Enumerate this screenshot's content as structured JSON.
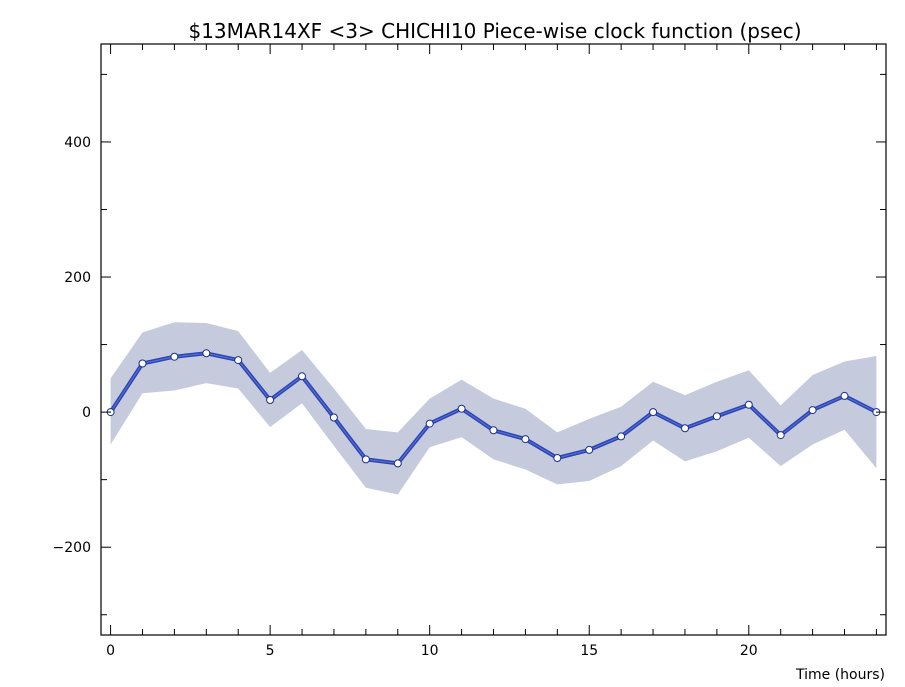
{
  "chart_data": {
    "type": "line",
    "title": "$13MAR14XF <3>  CHICHI10  Piece-wise clock function (psec)",
    "xlabel": "Time (hours)",
    "ylabel": "",
    "xlim": [
      -0.3,
      24.3
    ],
    "ylim": [
      -330,
      545
    ],
    "x_ticks": [
      "0",
      "5",
      "10",
      "15",
      "20"
    ],
    "y_ticks": [
      "-200",
      "0",
      "200",
      "400"
    ],
    "grid": false,
    "colors": {
      "line": "#2b45b8",
      "band": "#c5cadc",
      "point_fill": "#ffffff"
    },
    "series": [
      {
        "x": [
          0,
          1,
          2,
          3,
          4,
          5,
          6,
          7,
          8,
          9,
          10,
          11,
          12,
          13,
          14,
          15,
          16,
          17,
          18,
          19,
          20,
          21,
          22,
          23,
          24
        ],
        "values": [
          0,
          72,
          82,
          87,
          77,
          18,
          53,
          -8,
          -70,
          -76,
          -17,
          5,
          -27,
          -40,
          -68,
          -56,
          -36,
          0,
          -24,
          -6,
          11,
          -34,
          3,
          24,
          0
        ],
        "upper": [
          50,
          118,
          133,
          132,
          120,
          58,
          92,
          35,
          -25,
          -30,
          20,
          48,
          20,
          5,
          -30,
          -10,
          8,
          45,
          25,
          45,
          62,
          10,
          55,
          75,
          83
        ],
        "lower": [
          -48,
          28,
          32,
          43,
          35,
          -22,
          13,
          -50,
          -112,
          -122,
          -52,
          -37,
          -70,
          -85,
          -107,
          -102,
          -80,
          -42,
          -73,
          -58,
          -38,
          -80,
          -48,
          -26,
          -83
        ]
      }
    ]
  }
}
